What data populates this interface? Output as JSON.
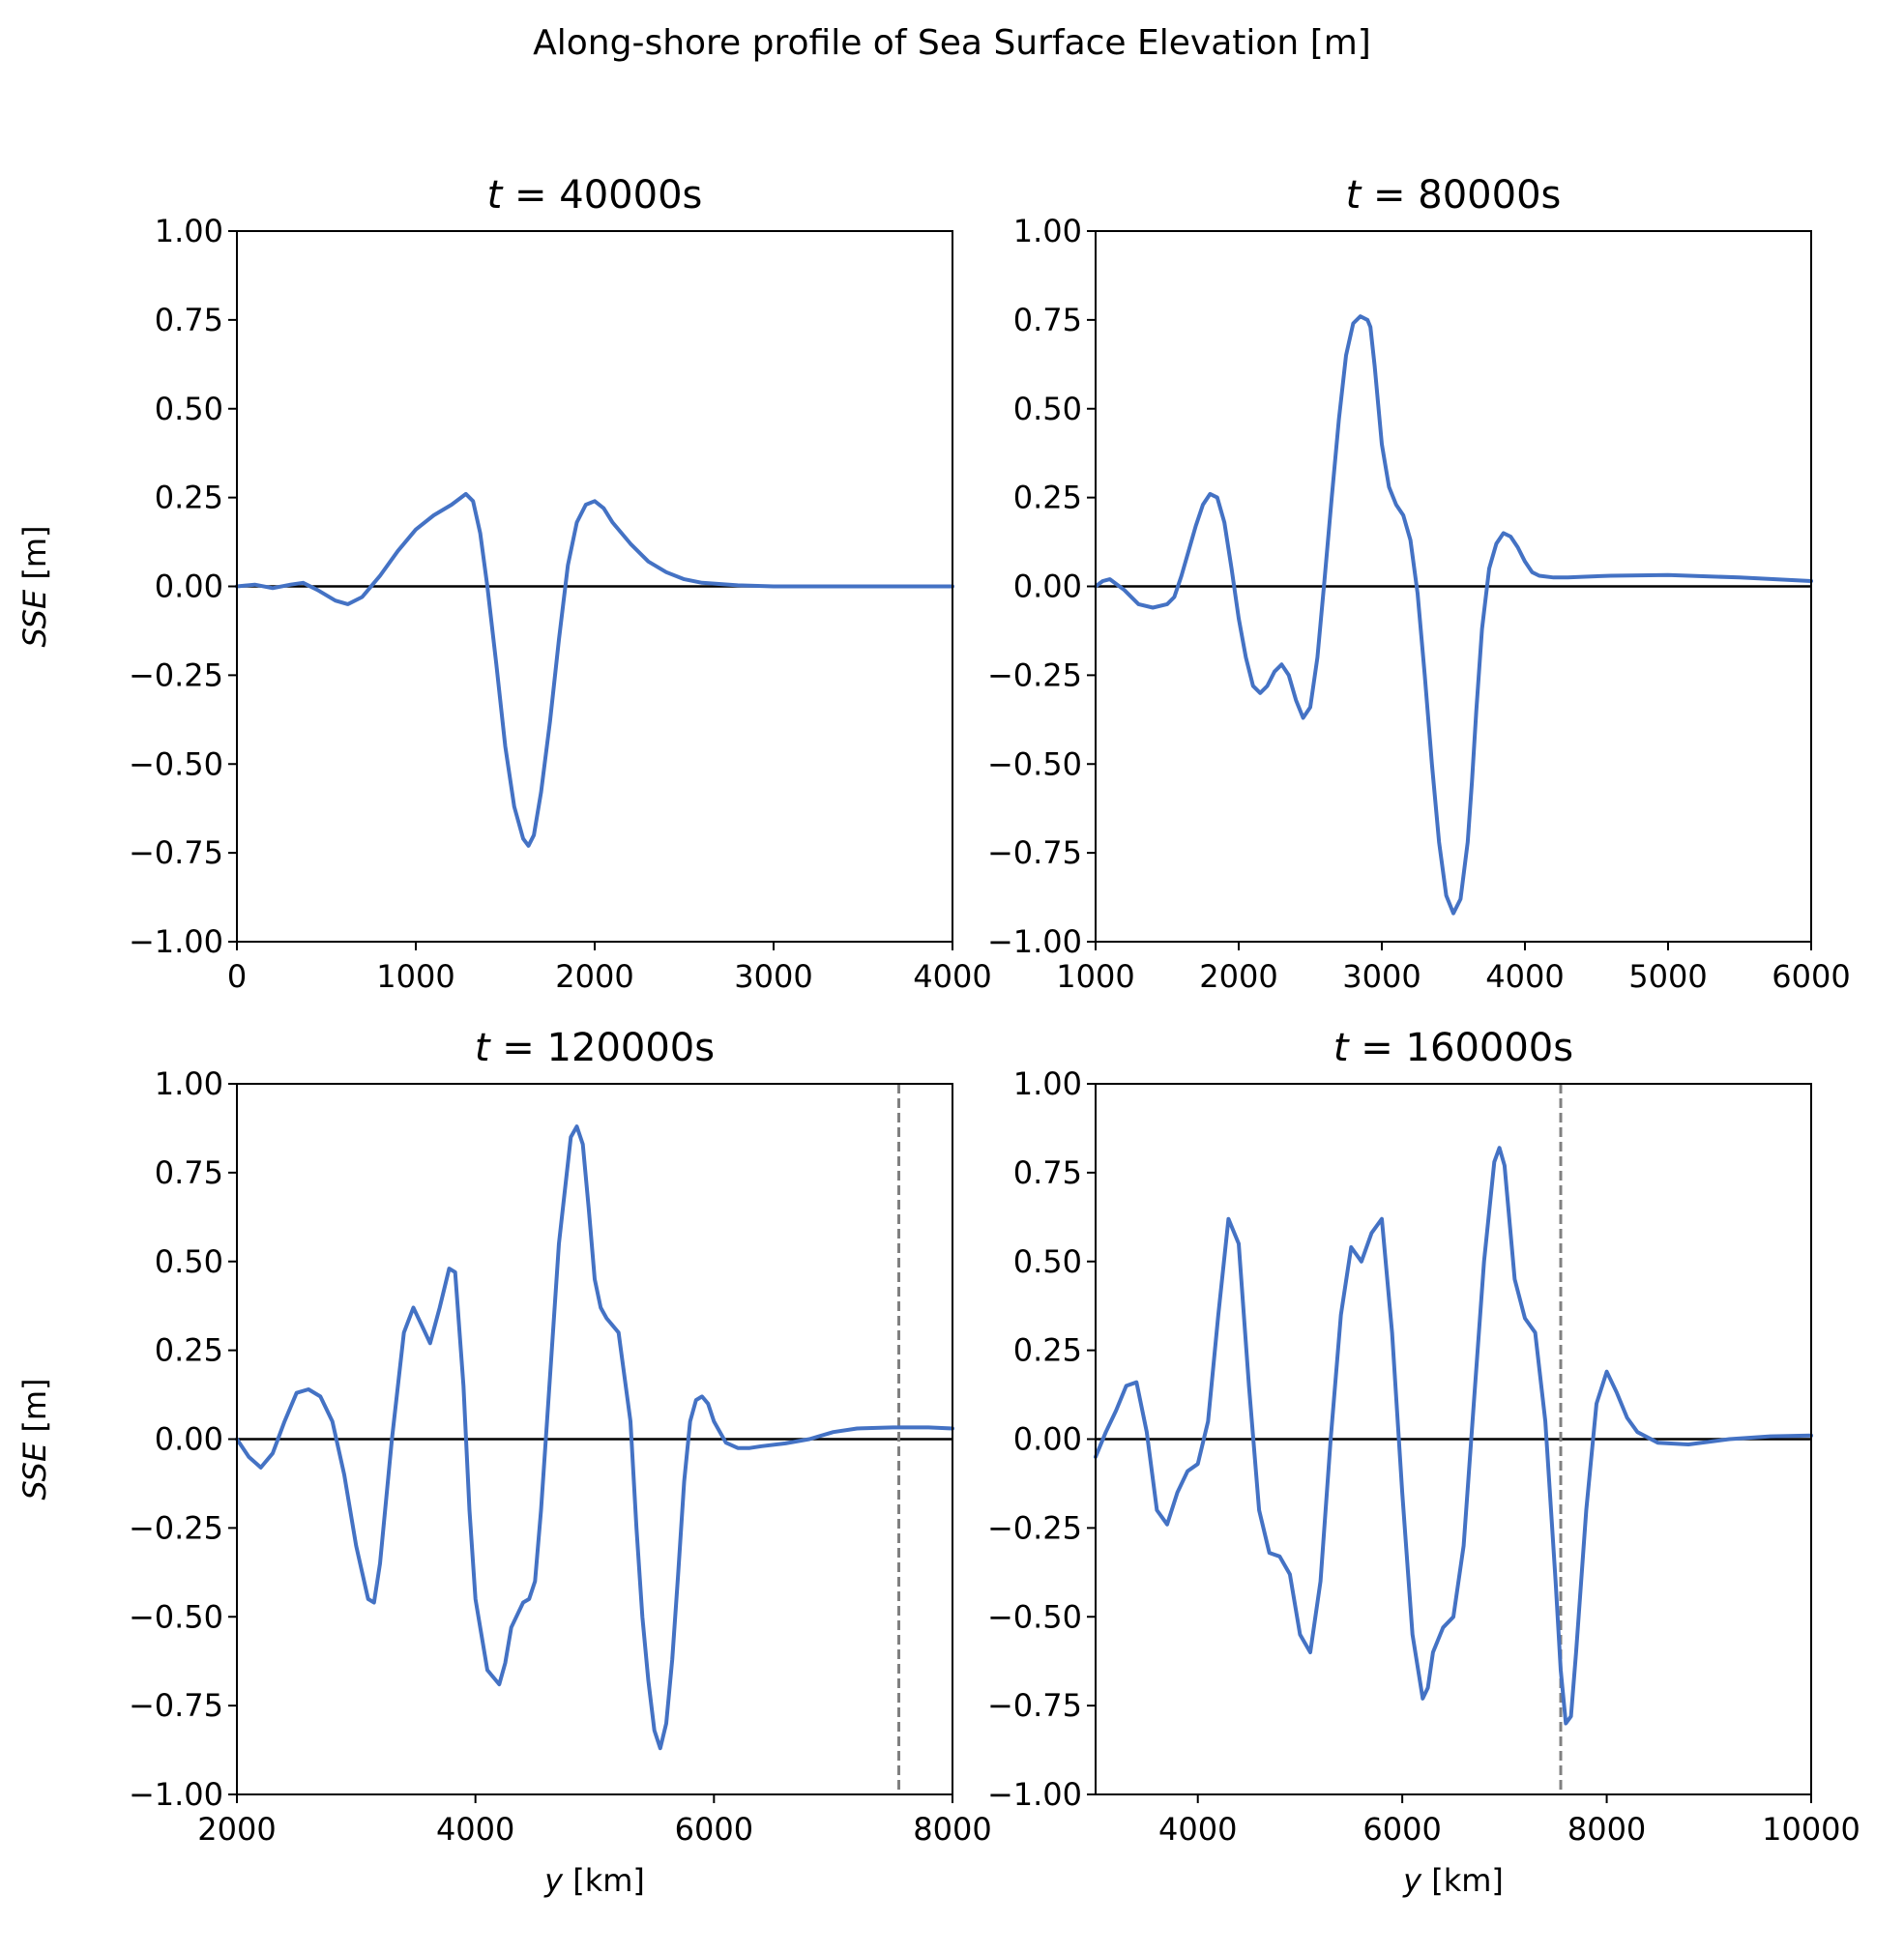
{
  "figure": {
    "suptitle": "Along-shore profile of Sea Surface Elevation [m]"
  },
  "chart_data": [
    {
      "type": "line",
      "title": "t = 40000s",
      "xlabel": "",
      "ylabel": "SSE [m]",
      "xlim": [
        0,
        4000
      ],
      "ylim": [
        -1.0,
        1.0
      ],
      "xticks": [
        "0",
        "1000",
        "2000",
        "3000",
        "4000"
      ],
      "yticks": [
        "1.00",
        "0.75",
        "0.50",
        "0.25",
        "0.00",
        "−0.25",
        "−0.50",
        "−0.75",
        "−1.00"
      ],
      "zero_line": true,
      "vline": null,
      "color": "#4472c4",
      "x": [
        0,
        100,
        200,
        300,
        370,
        450,
        550,
        620,
        700,
        800,
        900,
        1000,
        1100,
        1200,
        1280,
        1320,
        1360,
        1400,
        1450,
        1500,
        1550,
        1600,
        1630,
        1660,
        1700,
        1750,
        1800,
        1850,
        1900,
        1950,
        2000,
        2050,
        2100,
        2200,
        2300,
        2400,
        2500,
        2600,
        2800,
        3000,
        3500,
        4000
      ],
      "y": [
        0.0,
        0.005,
        -0.005,
        0.005,
        0.01,
        -0.01,
        -0.04,
        -0.05,
        -0.03,
        0.03,
        0.1,
        0.16,
        0.2,
        0.23,
        0.26,
        0.24,
        0.15,
        0.0,
        -0.22,
        -0.45,
        -0.62,
        -0.71,
        -0.73,
        -0.7,
        -0.58,
        -0.38,
        -0.15,
        0.06,
        0.18,
        0.23,
        0.24,
        0.22,
        0.18,
        0.12,
        0.07,
        0.04,
        0.02,
        0.01,
        0.003,
        0.0,
        0.0,
        0.0
      ]
    },
    {
      "type": "line",
      "title": "t = 80000s",
      "xlabel": "",
      "ylabel": "",
      "xlim": [
        1000,
        6000
      ],
      "ylim": [
        -1.0,
        1.0
      ],
      "xticks": [
        "1000",
        "2000",
        "3000",
        "4000",
        "5000",
        "6000"
      ],
      "yticks": [
        "1.00",
        "0.75",
        "0.50",
        "0.25",
        "0.00",
        "−0.25",
        "−0.50",
        "−0.75",
        "−1.00"
      ],
      "zero_line": true,
      "vline": null,
      "color": "#4472c4",
      "x": [
        1000,
        1050,
        1100,
        1200,
        1300,
        1400,
        1500,
        1550,
        1600,
        1650,
        1700,
        1750,
        1800,
        1850,
        1900,
        1950,
        2000,
        2050,
        2100,
        2150,
        2200,
        2250,
        2300,
        2350,
        2400,
        2450,
        2500,
        2550,
        2600,
        2650,
        2700,
        2750,
        2800,
        2850,
        2900,
        2920,
        2950,
        3000,
        3050,
        3100,
        3150,
        3200,
        3250,
        3300,
        3350,
        3400,
        3450,
        3500,
        3550,
        3600,
        3630,
        3660,
        3700,
        3750,
        3800,
        3850,
        3900,
        3950,
        4000,
        4050,
        4100,
        4200,
        4300,
        4400,
        4600,
        5000,
        5500,
        6000
      ],
      "y": [
        0.0,
        0.015,
        0.02,
        -0.01,
        -0.05,
        -0.06,
        -0.05,
        -0.03,
        0.03,
        0.1,
        0.17,
        0.23,
        0.26,
        0.25,
        0.18,
        0.05,
        -0.09,
        -0.2,
        -0.28,
        -0.3,
        -0.28,
        -0.24,
        -0.22,
        -0.25,
        -0.32,
        -0.37,
        -0.34,
        -0.2,
        0.02,
        0.25,
        0.47,
        0.65,
        0.74,
        0.76,
        0.75,
        0.73,
        0.62,
        0.4,
        0.28,
        0.23,
        0.2,
        0.13,
        -0.02,
        -0.25,
        -0.5,
        -0.72,
        -0.87,
        -0.92,
        -0.88,
        -0.72,
        -0.55,
        -0.35,
        -0.12,
        0.05,
        0.12,
        0.15,
        0.14,
        0.11,
        0.07,
        0.04,
        0.03,
        0.025,
        0.025,
        0.027,
        0.03,
        0.032,
        0.025,
        0.015
      ]
    },
    {
      "type": "line",
      "title": "t = 120000s",
      "xlabel": "y [km]",
      "ylabel": "SSE [m]",
      "xlim": [
        2000,
        8000
      ],
      "ylim": [
        -1.0,
        1.0
      ],
      "xticks": [
        "2000",
        "4000",
        "6000",
        "8000"
      ],
      "yticks": [
        "1.00",
        "0.75",
        "0.50",
        "0.25",
        "0.00",
        "−0.25",
        "−0.50",
        "−0.75",
        "−1.00"
      ],
      "zero_line": true,
      "vline": 7550,
      "color": "#4472c4",
      "x": [
        2000,
        2100,
        2200,
        2300,
        2400,
        2500,
        2600,
        2700,
        2800,
        2900,
        3000,
        3100,
        3150,
        3200,
        3300,
        3400,
        3480,
        3550,
        3620,
        3700,
        3780,
        3830,
        3900,
        3950,
        4000,
        4100,
        4200,
        4250,
        4300,
        4400,
        4450,
        4500,
        4550,
        4600,
        4700,
        4800,
        4850,
        4900,
        4950,
        5000,
        5050,
        5100,
        5200,
        5300,
        5350,
        5400,
        5450,
        5500,
        5550,
        5600,
        5650,
        5700,
        5750,
        5800,
        5850,
        5900,
        5950,
        6000,
        6100,
        6200,
        6300,
        6400,
        6600,
        6800,
        7000,
        7200,
        7500,
        7800,
        8000
      ],
      "y": [
        0.0,
        -0.05,
        -0.08,
        -0.04,
        0.05,
        0.13,
        0.14,
        0.12,
        0.05,
        -0.1,
        -0.3,
        -0.45,
        -0.46,
        -0.35,
        0.0,
        0.3,
        0.37,
        0.32,
        0.27,
        0.37,
        0.48,
        0.47,
        0.15,
        -0.2,
        -0.45,
        -0.65,
        -0.69,
        -0.63,
        -0.53,
        -0.46,
        -0.45,
        -0.4,
        -0.2,
        0.05,
        0.55,
        0.85,
        0.88,
        0.83,
        0.65,
        0.45,
        0.37,
        0.34,
        0.3,
        0.05,
        -0.25,
        -0.5,
        -0.68,
        -0.82,
        -0.87,
        -0.8,
        -0.62,
        -0.38,
        -0.12,
        0.05,
        0.11,
        0.12,
        0.1,
        0.05,
        -0.01,
        -0.025,
        -0.025,
        -0.02,
        -0.012,
        0.0,
        0.02,
        0.03,
        0.033,
        0.033,
        0.03
      ]
    },
    {
      "type": "line",
      "title": "t = 160000s",
      "xlabel": "y [km]",
      "ylabel": "",
      "xlim": [
        3000,
        10000
      ],
      "ylim": [
        -1.0,
        1.0
      ],
      "xticks": [
        "4000",
        "6000",
        "8000",
        "10000"
      ],
      "yticks": [
        "1.00",
        "0.75",
        "0.50",
        "0.25",
        "0.00",
        "−0.25",
        "−0.50",
        "−0.75",
        "−1.00"
      ],
      "zero_line": true,
      "vline": 7550,
      "color": "#4472c4",
      "x": [
        3000,
        3100,
        3200,
        3300,
        3400,
        3500,
        3600,
        3700,
        3800,
        3900,
        4000,
        4100,
        4200,
        4300,
        4400,
        4500,
        4600,
        4700,
        4800,
        4900,
        5000,
        5100,
        5200,
        5300,
        5400,
        5500,
        5600,
        5700,
        5800,
        5900,
        6000,
        6100,
        6200,
        6250,
        6300,
        6400,
        6500,
        6600,
        6700,
        6800,
        6900,
        6950,
        7000,
        7100,
        7200,
        7300,
        7400,
        7500,
        7550,
        7600,
        7650,
        7700,
        7800,
        7900,
        8000,
        8100,
        8200,
        8300,
        8500,
        8800,
        9200,
        9600,
        10000
      ],
      "y": [
        -0.05,
        0.02,
        0.08,
        0.15,
        0.16,
        0.02,
        -0.2,
        -0.24,
        -0.15,
        -0.09,
        -0.07,
        0.05,
        0.35,
        0.62,
        0.55,
        0.15,
        -0.2,
        -0.32,
        -0.33,
        -0.38,
        -0.55,
        -0.6,
        -0.4,
        0.0,
        0.35,
        0.54,
        0.5,
        0.58,
        0.62,
        0.3,
        -0.15,
        -0.55,
        -0.73,
        -0.7,
        -0.6,
        -0.53,
        -0.5,
        -0.3,
        0.1,
        0.5,
        0.78,
        0.82,
        0.77,
        0.45,
        0.34,
        0.3,
        0.05,
        -0.4,
        -0.65,
        -0.8,
        -0.78,
        -0.6,
        -0.2,
        0.1,
        0.19,
        0.13,
        0.06,
        0.02,
        -0.01,
        -0.015,
        0.0,
        0.008,
        0.01
      ]
    }
  ]
}
